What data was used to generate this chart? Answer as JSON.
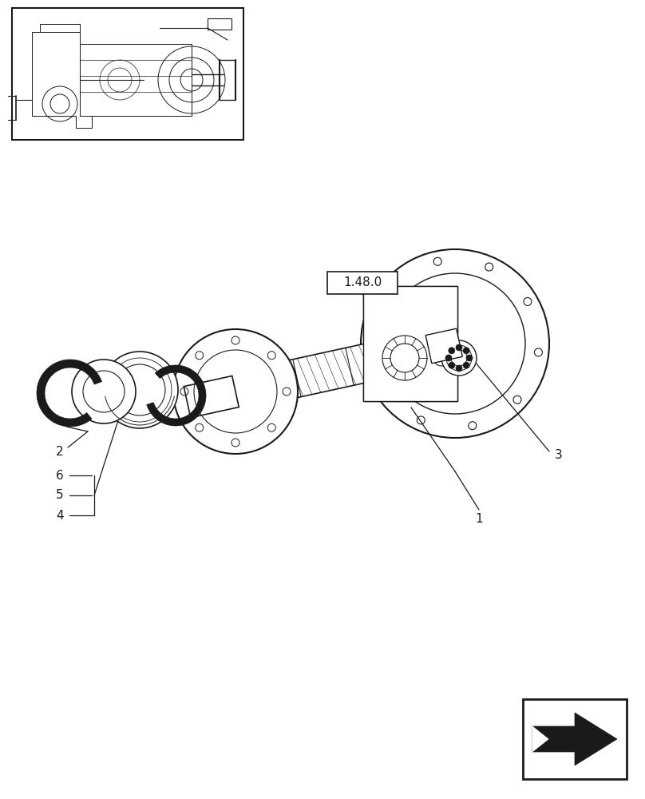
{
  "bg_color": "#ffffff",
  "line_color": "#1a1a1a",
  "fig_width": 8.08,
  "fig_height": 10.0,
  "dpi": 100,
  "ref_label_text": "1.48.0",
  "label_1": "1",
  "label_2": "2",
  "label_3": "3",
  "label_4": "4",
  "label_5": "5",
  "label_6": "6"
}
